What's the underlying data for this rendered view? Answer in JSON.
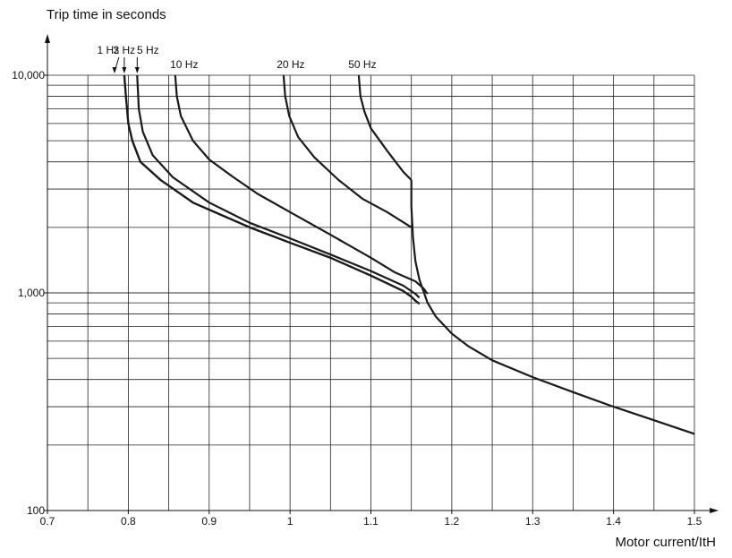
{
  "chart_data": {
    "type": "line",
    "ylabel": "Trip time in seconds",
    "xlabel": "Motor current/ItH",
    "xlim": [
      0.7,
      1.5
    ],
    "ylim": [
      100,
      10000
    ],
    "y_scale": "log",
    "grid": true,
    "x_tick_labels": [
      "0.7",
      "0.8",
      "0.9",
      "1",
      "1.1",
      "1.2",
      "1.3",
      "1.4",
      "1.5"
    ],
    "x_tick_values": [
      0.7,
      0.8,
      0.9,
      1.0,
      1.1,
      1.2,
      1.3,
      1.4,
      1.5
    ],
    "y_tick_labels": [
      "100",
      "1,000",
      "10,000"
    ],
    "y_tick_values": [
      100,
      1000,
      10000
    ],
    "series": [
      {
        "name": "1 Hz",
        "points": [
          [
            0.795,
            10000
          ],
          [
            0.797,
            8000
          ],
          [
            0.8,
            6000
          ],
          [
            0.805,
            5000
          ],
          [
            0.815,
            4000
          ],
          [
            0.84,
            3300
          ],
          [
            0.88,
            2600
          ],
          [
            0.95,
            2000
          ],
          [
            1.0,
            1700
          ],
          [
            1.05,
            1450
          ],
          [
            1.1,
            1200
          ],
          [
            1.14,
            1020
          ],
          [
            1.15,
            960
          ],
          [
            1.155,
            920
          ],
          [
            1.16,
            890
          ]
        ]
      },
      {
        "name": "3 Hz",
        "points": [
          [
            0.795,
            10000
          ],
          [
            0.797,
            8000
          ],
          [
            0.8,
            6000
          ],
          [
            0.805,
            5000
          ],
          [
            0.815,
            4000
          ],
          [
            0.84,
            3300
          ],
          [
            0.88,
            2600
          ],
          [
            0.95,
            2000
          ],
          [
            1.0,
            1700
          ],
          [
            1.05,
            1450
          ],
          [
            1.1,
            1200
          ],
          [
            1.14,
            1020
          ],
          [
            1.15,
            960
          ],
          [
            1.155,
            920
          ],
          [
            1.16,
            890
          ]
        ]
      },
      {
        "name": "5 Hz",
        "points": [
          [
            0.811,
            10000
          ],
          [
            0.813,
            7000
          ],
          [
            0.818,
            5500
          ],
          [
            0.83,
            4300
          ],
          [
            0.855,
            3400
          ],
          [
            0.9,
            2600
          ],
          [
            0.95,
            2100
          ],
          [
            1.0,
            1780
          ],
          [
            1.05,
            1500
          ],
          [
            1.1,
            1260
          ],
          [
            1.14,
            1080
          ],
          [
            1.155,
            990
          ],
          [
            1.16,
            950
          ]
        ]
      },
      {
        "name": "10 Hz",
        "points": [
          [
            0.858,
            10000
          ],
          [
            0.86,
            8000
          ],
          [
            0.865,
            6500
          ],
          [
            0.88,
            5000
          ],
          [
            0.9,
            4100
          ],
          [
            0.93,
            3400
          ],
          [
            0.96,
            2850
          ],
          [
            1.0,
            2350
          ],
          [
            1.05,
            1850
          ],
          [
            1.1,
            1450
          ],
          [
            1.13,
            1240
          ],
          [
            1.155,
            1130
          ],
          [
            1.165,
            1050
          ],
          [
            1.17,
            990
          ]
        ]
      },
      {
        "name": "20 Hz",
        "points": [
          [
            0.992,
            10000
          ],
          [
            0.994,
            8000
          ],
          [
            0.999,
            6500
          ],
          [
            1.01,
            5200
          ],
          [
            1.03,
            4200
          ],
          [
            1.06,
            3300
          ],
          [
            1.09,
            2700
          ],
          [
            1.12,
            2350
          ],
          [
            1.15,
            2000
          ]
        ]
      },
      {
        "name": "50 Hz",
        "points": [
          [
            1.085,
            10000
          ],
          [
            1.087,
            8000
          ],
          [
            1.092,
            6800
          ],
          [
            1.1,
            5700
          ],
          [
            1.12,
            4500
          ],
          [
            1.14,
            3600
          ],
          [
            1.15,
            3300
          ]
        ]
      },
      {
        "name": "",
        "points": [
          [
            1.15,
            3300
          ],
          [
            1.15,
            2500
          ],
          [
            1.152,
            1800
          ],
          [
            1.155,
            1400
          ],
          [
            1.16,
            1150
          ],
          [
            1.17,
            900
          ],
          [
            1.18,
            780
          ],
          [
            1.2,
            650
          ],
          [
            1.22,
            570
          ],
          [
            1.25,
            490
          ],
          [
            1.3,
            410
          ],
          [
            1.35,
            350
          ],
          [
            1.4,
            300
          ],
          [
            1.45,
            260
          ],
          [
            1.5,
            225
          ]
        ]
      }
    ]
  }
}
